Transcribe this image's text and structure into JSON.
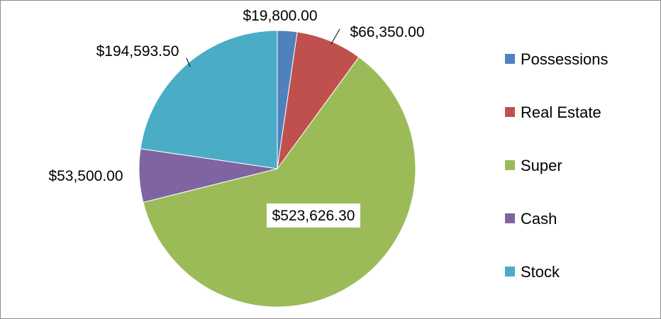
{
  "chart_data": {
    "type": "pie",
    "title": "",
    "legend_position": "right",
    "slices": [
      {
        "name": "Possessions",
        "value": 19800.0,
        "label": "$19,800.00",
        "color": "#4f81bd"
      },
      {
        "name": "Real Estate",
        "value": 66350.0,
        "label": "$66,350.00",
        "color": "#c0504d"
      },
      {
        "name": "Super",
        "value": 523626.3,
        "label": "$523,626.30",
        "color": "#9bbb59"
      },
      {
        "name": "Cash",
        "value": 53500.0,
        "label": "$53,500.00",
        "color": "#8064a2"
      },
      {
        "name": "Stock",
        "value": 194593.5,
        "label": "$194,593.50",
        "color": "#4bacc6"
      }
    ]
  }
}
